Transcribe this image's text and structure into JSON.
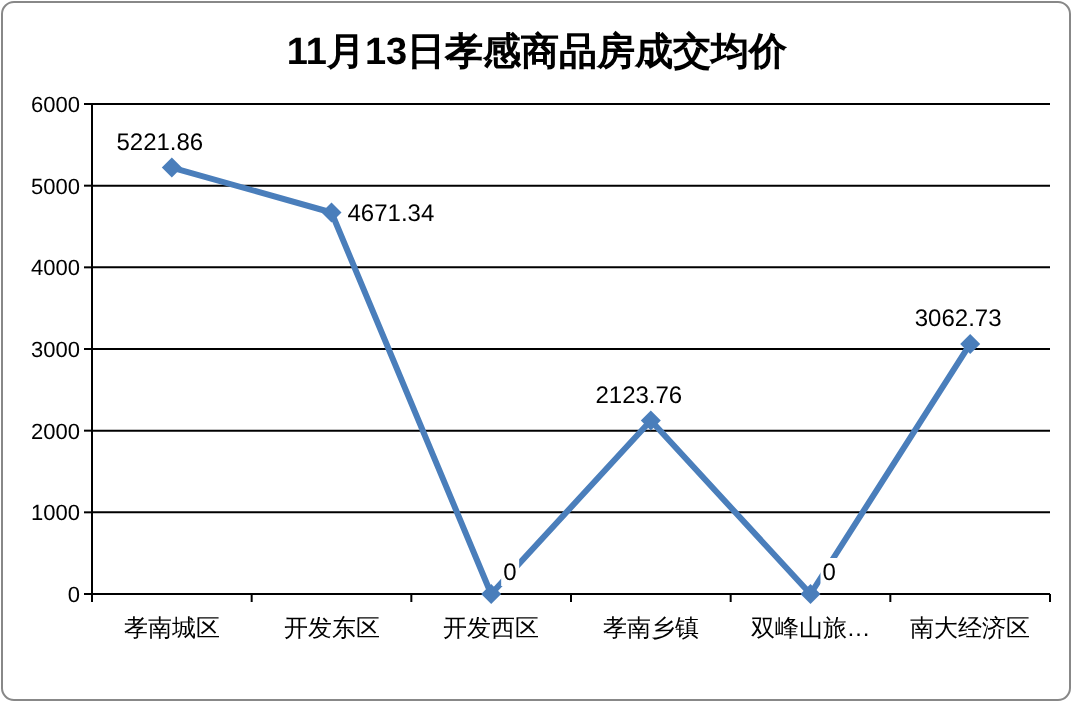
{
  "chart_data": {
    "type": "line",
    "title": "11月13日孝感商品房成交均价",
    "categories": [
      "孝南城区",
      "开发东区",
      "开发西区",
      "孝南乡镇",
      "双峰山旅…",
      "南大经济区"
    ],
    "series": [
      {
        "color": "#4a7ebb",
        "values": [
          5221.86,
          4671.34,
          0,
          2123.76,
          0,
          3062.73
        ]
      }
    ],
    "ylim": [
      0,
      6000
    ],
    "yticks": [
      0,
      1000,
      2000,
      3000,
      4000,
      5000,
      6000
    ],
    "grid": "y",
    "marker": "diamond",
    "data_labels": true
  }
}
